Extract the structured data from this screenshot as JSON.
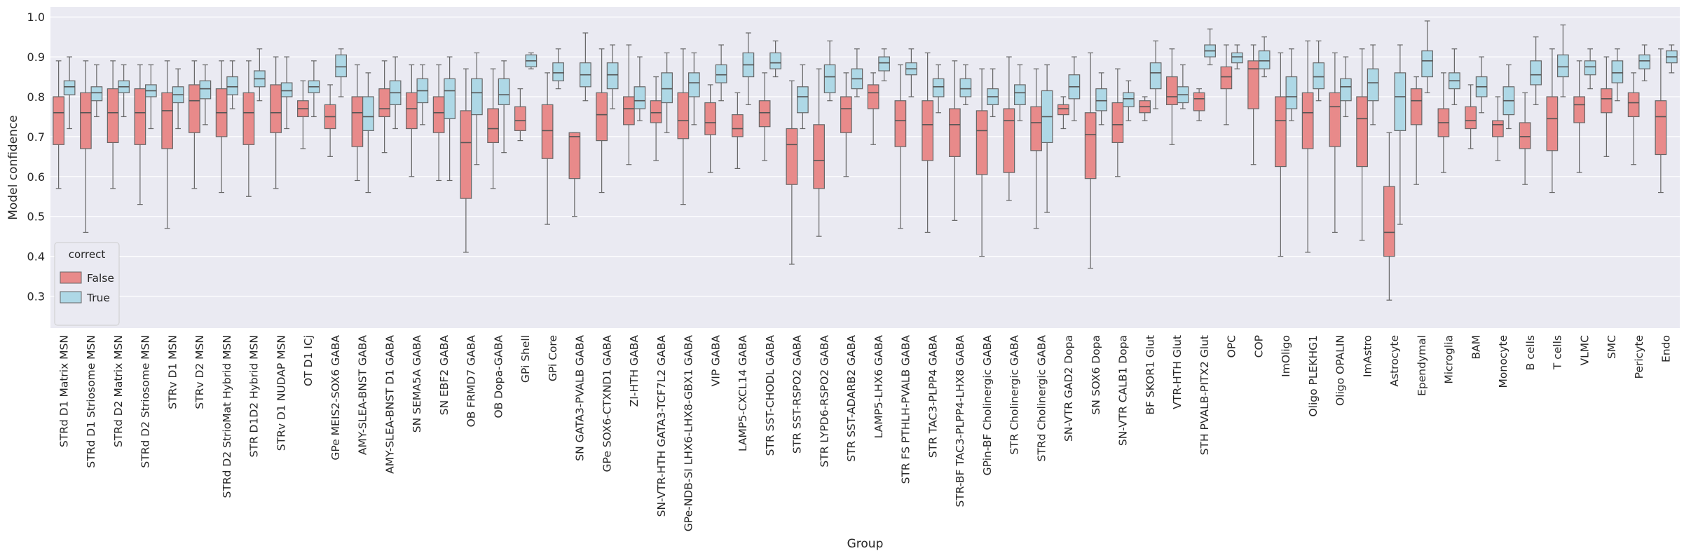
{
  "chart_data": {
    "type": "boxplot",
    "xlabel": "Group",
    "ylabel": "Model confidence",
    "ylim": [
      0.22,
      1.025
    ],
    "yticks": [
      0.3,
      0.4,
      0.5,
      0.6,
      0.7,
      0.8,
      0.9,
      1.0
    ],
    "grid": true,
    "legend": {
      "title": "correct",
      "placement": "lower-left",
      "entries": [
        {
          "label": "False",
          "color": "#e88a8a"
        },
        {
          "label": "True",
          "color": "#aed8e6"
        }
      ]
    },
    "colors": {
      "background": "#eaeaf2",
      "grid": "#ffffff",
      "median": "#555555",
      "whisker": "#666666"
    },
    "categories": [
      "STRd D1 Matrix MSN",
      "STRd D1 Striosome MSN",
      "STRd D2 Matrix MSN",
      "STRd D2 Striosome MSN",
      "STRv D1 MSN",
      "STRv D2 MSN",
      "STRd D2 StrioMat Hybrid MSN",
      "STR D1D2 Hybrid MSN",
      "STRv D1 NUDAP MSN",
      "OT D1 ICj",
      "GPe MEIS2-SOX6 GABA",
      "AMY-SLEA-BNST GABA",
      "AMY-SLEA-BNST D1 GABA",
      "SN SEMA5A GABA",
      "SN EBF2 GABA",
      "OB FRMD7 GABA",
      "OB Dopa-GABA",
      "GPi Shell",
      "GPi Core",
      "SN GATA3-PVALB GABA",
      "GPe SOX6-CTXND1 GABA",
      "ZI-HTH GABA",
      "SN-VTR-HTH GATA3-TCF7L2 GABA",
      "GPe-NDB-SI LHX6-LHX8-GBX1 GABA",
      "VIP GABA",
      "LAMP5-CXCL14 GABA",
      "STR SST-CHODL GABA",
      "STR SST-RSPO2 GABA",
      "STR LYPD6-RSPO2 GABA",
      "STR SST-ADARB2 GABA",
      "LAMP5-LHX6 GABA",
      "STR FS PTHLH-PVALB GABA",
      "STR TAC3-PLPP4 GABA",
      "STR-BF TAC3-PLPP4-LHX8 GABA",
      "GPin-BF Cholinergic GABA",
      "STR Cholinergic GABA",
      "STRd Cholinergic GABA",
      "SN-VTR GAD2 Dopa",
      "SN SOX6 Dopa",
      "SN-VTR CALB1 Dopa",
      "BF SKOR1 Glut",
      "VTR-HTH Glut",
      "STH PVALB-PITX2 Glut",
      "OPC",
      "COP",
      "ImOligo",
      "Oligo PLEKHG1",
      "Oligo OPALIN",
      "ImAstro",
      "Astrocyte",
      "Ependymal",
      "Microglia",
      "BAM",
      "Monocyte",
      "B cells",
      "T cells",
      "VLMC",
      "SMC",
      "Pericyte",
      "Endo"
    ],
    "series": [
      {
        "name": "False",
        "boxes": [
          [
            0.57,
            0.68,
            0.76,
            0.8,
            0.89
          ],
          [
            0.46,
            0.67,
            0.76,
            0.81,
            0.89
          ],
          [
            0.57,
            0.685,
            0.76,
            0.82,
            0.89
          ],
          [
            0.53,
            0.68,
            0.76,
            0.82,
            0.88
          ],
          [
            0.47,
            0.67,
            0.765,
            0.81,
            0.89
          ],
          [
            0.57,
            0.71,
            0.79,
            0.83,
            0.89
          ],
          [
            0.56,
            0.7,
            0.76,
            0.82,
            0.89
          ],
          [
            0.55,
            0.68,
            0.76,
            0.81,
            0.89
          ],
          [
            0.57,
            0.71,
            0.76,
            0.83,
            0.9
          ],
          [
            0.67,
            0.75,
            0.77,
            0.79,
            0.84
          ],
          [
            0.65,
            0.72,
            0.75,
            0.78,
            0.83
          ],
          [
            0.59,
            0.675,
            0.76,
            0.8,
            0.88
          ],
          [
            0.66,
            0.75,
            0.77,
            0.82,
            0.89
          ],
          [
            0.6,
            0.72,
            0.77,
            0.81,
            0.88
          ],
          [
            0.59,
            0.71,
            0.76,
            0.8,
            0.88
          ],
          [
            0.41,
            0.545,
            0.685,
            0.765,
            0.87
          ],
          [
            0.57,
            0.685,
            0.72,
            0.77,
            0.87
          ],
          [
            0.69,
            0.715,
            0.74,
            0.775,
            0.82
          ],
          [
            0.48,
            0.645,
            0.715,
            0.78,
            0.86
          ],
          [
            0.5,
            0.595,
            0.7,
            0.71,
            0.71
          ],
          [
            0.56,
            0.69,
            0.755,
            0.81,
            0.92
          ],
          [
            0.63,
            0.73,
            0.77,
            0.8,
            0.93
          ],
          [
            0.64,
            0.735,
            0.76,
            0.79,
            0.85
          ],
          [
            0.53,
            0.695,
            0.74,
            0.81,
            0.92
          ],
          [
            0.61,
            0.705,
            0.735,
            0.785,
            0.83
          ],
          [
            0.62,
            0.7,
            0.72,
            0.755,
            0.81
          ],
          [
            0.64,
            0.725,
            0.76,
            0.79,
            0.86
          ],
          [
            0.38,
            0.58,
            0.68,
            0.72,
            0.84
          ],
          [
            0.45,
            0.57,
            0.64,
            0.73,
            0.87
          ],
          [
            0.6,
            0.71,
            0.77,
            0.8,
            0.86
          ],
          [
            0.68,
            0.77,
            0.81,
            0.83,
            0.86
          ],
          [
            0.47,
            0.675,
            0.74,
            0.79,
            0.88
          ],
          [
            0.46,
            0.64,
            0.73,
            0.79,
            0.91
          ],
          [
            0.49,
            0.65,
            0.73,
            0.77,
            0.89
          ],
          [
            0.4,
            0.605,
            0.715,
            0.765,
            0.87
          ],
          [
            0.54,
            0.61,
            0.74,
            0.77,
            0.9
          ],
          [
            0.47,
            0.665,
            0.735,
            0.775,
            0.87
          ],
          [
            0.72,
            0.755,
            0.77,
            0.78,
            0.8
          ],
          [
            0.37,
            0.595,
            0.705,
            0.76,
            0.91
          ],
          [
            0.6,
            0.685,
            0.73,
            0.785,
            0.87
          ],
          [
            0.74,
            0.76,
            0.775,
            0.79,
            0.8
          ],
          [
            0.68,
            0.78,
            0.8,
            0.85,
            0.92
          ],
          [
            0.74,
            0.765,
            0.795,
            0.81,
            0.82
          ],
          [
            0.73,
            0.82,
            0.85,
            0.875,
            0.93
          ],
          [
            0.63,
            0.77,
            0.87,
            0.89,
            0.93
          ],
          [
            0.4,
            0.625,
            0.74,
            0.8,
            0.91
          ],
          [
            0.41,
            0.67,
            0.76,
            0.81,
            0.94
          ],
          [
            0.46,
            0.675,
            0.775,
            0.81,
            0.91
          ],
          [
            0.44,
            0.625,
            0.745,
            0.8,
            0.92
          ],
          [
            0.29,
            0.4,
            0.46,
            0.575,
            0.71
          ],
          [
            0.58,
            0.73,
            0.79,
            0.82,
            0.85
          ],
          [
            0.61,
            0.7,
            0.735,
            0.77,
            0.86
          ],
          [
            0.67,
            0.72,
            0.74,
            0.775,
            0.83
          ],
          [
            0.64,
            0.7,
            0.73,
            0.74,
            0.8
          ],
          [
            0.58,
            0.67,
            0.7,
            0.735,
            0.81
          ],
          [
            0.56,
            0.665,
            0.745,
            0.8,
            0.92
          ],
          [
            0.61,
            0.735,
            0.78,
            0.8,
            0.89
          ],
          [
            0.65,
            0.76,
            0.795,
            0.82,
            0.9
          ],
          [
            0.63,
            0.75,
            0.785,
            0.81,
            0.86
          ],
          [
            0.56,
            0.655,
            0.75,
            0.79,
            0.92
          ]
        ]
      },
      {
        "name": "True",
        "boxes": [
          [
            0.72,
            0.805,
            0.825,
            0.84,
            0.9
          ],
          [
            0.75,
            0.79,
            0.81,
            0.825,
            0.88
          ],
          [
            0.75,
            0.81,
            0.825,
            0.84,
            0.88
          ],
          [
            0.72,
            0.8,
            0.815,
            0.83,
            0.88
          ],
          [
            0.72,
            0.785,
            0.805,
            0.825,
            0.87
          ],
          [
            0.73,
            0.795,
            0.82,
            0.84,
            0.88
          ],
          [
            0.77,
            0.805,
            0.825,
            0.85,
            0.89
          ],
          [
            0.79,
            0.825,
            0.845,
            0.865,
            0.92
          ],
          [
            0.72,
            0.8,
            0.815,
            0.835,
            0.9
          ],
          [
            0.75,
            0.81,
            0.825,
            0.84,
            0.89
          ],
          [
            0.8,
            0.85,
            0.875,
            0.905,
            0.92
          ],
          [
            0.56,
            0.715,
            0.75,
            0.8,
            0.86
          ],
          [
            0.72,
            0.78,
            0.81,
            0.84,
            0.9
          ],
          [
            0.73,
            0.785,
            0.815,
            0.845,
            0.88
          ],
          [
            0.59,
            0.745,
            0.815,
            0.845,
            0.9
          ],
          [
            0.63,
            0.755,
            0.81,
            0.845,
            0.91
          ],
          [
            0.66,
            0.78,
            0.805,
            0.845,
            0.89
          ],
          [
            0.87,
            0.875,
            0.89,
            0.905,
            0.91
          ],
          [
            0.82,
            0.84,
            0.86,
            0.885,
            0.92
          ],
          [
            0.79,
            0.825,
            0.855,
            0.885,
            0.96
          ],
          [
            0.77,
            0.82,
            0.855,
            0.885,
            0.93
          ],
          [
            0.74,
            0.77,
            0.79,
            0.825,
            0.9
          ],
          [
            0.71,
            0.785,
            0.82,
            0.86,
            0.91
          ],
          [
            0.73,
            0.8,
            0.835,
            0.86,
            0.91
          ],
          [
            0.79,
            0.835,
            0.855,
            0.88,
            0.93
          ],
          [
            0.78,
            0.85,
            0.88,
            0.91,
            0.96
          ],
          [
            0.85,
            0.87,
            0.885,
            0.91,
            0.94
          ],
          [
            0.72,
            0.76,
            0.8,
            0.825,
            0.88
          ],
          [
            0.79,
            0.81,
            0.85,
            0.88,
            0.94
          ],
          [
            0.8,
            0.82,
            0.845,
            0.87,
            0.92
          ],
          [
            0.84,
            0.865,
            0.885,
            0.9,
            0.92
          ],
          [
            0.8,
            0.855,
            0.87,
            0.885,
            0.92
          ],
          [
            0.76,
            0.8,
            0.825,
            0.845,
            0.88
          ],
          [
            0.78,
            0.8,
            0.82,
            0.845,
            0.88
          ],
          [
            0.75,
            0.78,
            0.8,
            0.82,
            0.87
          ],
          [
            0.74,
            0.78,
            0.81,
            0.83,
            0.88
          ],
          [
            0.51,
            0.685,
            0.75,
            0.815,
            0.88
          ],
          [
            0.74,
            0.795,
            0.825,
            0.855,
            0.9
          ],
          [
            0.73,
            0.765,
            0.79,
            0.82,
            0.86
          ],
          [
            0.74,
            0.775,
            0.795,
            0.81,
            0.84
          ],
          [
            0.77,
            0.82,
            0.86,
            0.885,
            0.94
          ],
          [
            0.77,
            0.785,
            0.805,
            0.825,
            0.88
          ],
          [
            0.88,
            0.9,
            0.915,
            0.93,
            0.97
          ],
          [
            0.87,
            0.885,
            0.9,
            0.91,
            0.93
          ],
          [
            0.85,
            0.87,
            0.89,
            0.915,
            0.95
          ],
          [
            0.74,
            0.77,
            0.8,
            0.85,
            0.92
          ],
          [
            0.79,
            0.82,
            0.85,
            0.885,
            0.94
          ],
          [
            0.75,
            0.79,
            0.825,
            0.845,
            0.9
          ],
          [
            0.73,
            0.79,
            0.835,
            0.87,
            0.93
          ],
          [
            0.48,
            0.715,
            0.8,
            0.86,
            0.93
          ],
          [
            0.81,
            0.85,
            0.89,
            0.915,
            0.99
          ],
          [
            0.78,
            0.82,
            0.84,
            0.86,
            0.92
          ],
          [
            0.76,
            0.8,
            0.825,
            0.85,
            0.9
          ],
          [
            0.72,
            0.755,
            0.79,
            0.825,
            0.88
          ],
          [
            0.78,
            0.83,
            0.855,
            0.89,
            0.95
          ],
          [
            0.8,
            0.85,
            0.875,
            0.905,
            0.98
          ],
          [
            0.82,
            0.855,
            0.875,
            0.89,
            0.92
          ],
          [
            0.79,
            0.835,
            0.86,
            0.89,
            0.92
          ],
          [
            0.84,
            0.87,
            0.89,
            0.905,
            0.93
          ],
          [
            0.86,
            0.885,
            0.9,
            0.915,
            0.93
          ]
        ]
      }
    ]
  }
}
